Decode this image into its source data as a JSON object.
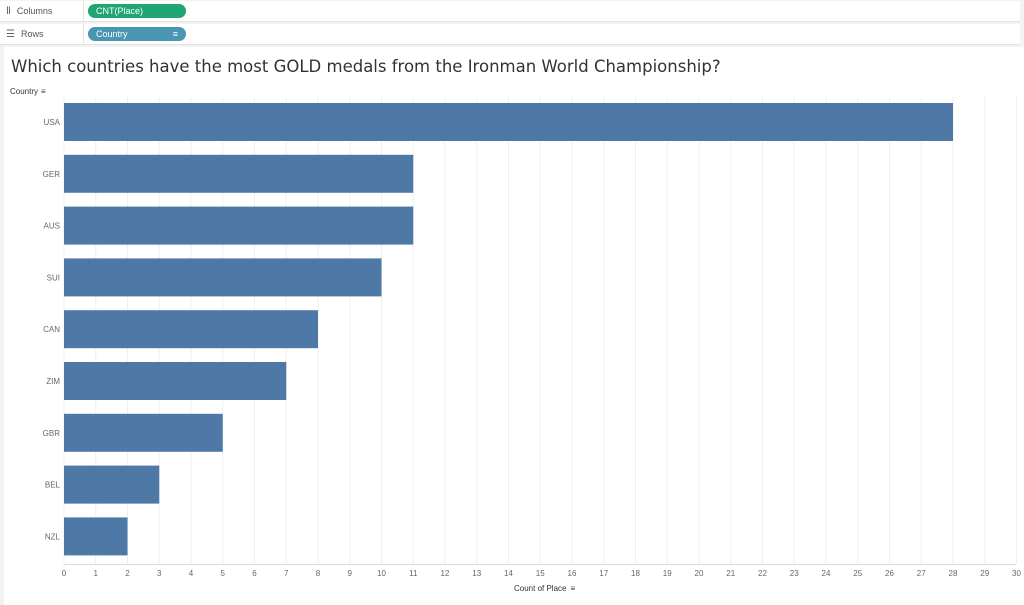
{
  "shelves": {
    "columns": {
      "label": "Columns",
      "pill": "CNT(Place)"
    },
    "rows": {
      "label": "Rows",
      "pill": "Country"
    }
  },
  "colors": {
    "bar": "#4e79a7",
    "columns_pill": "#1fa672",
    "rows_pill": "#4996b2"
  },
  "chart_data": {
    "type": "bar",
    "orientation": "horizontal",
    "title": "Which countries have the most GOLD medals from the Ironman World Championship?",
    "ylabel": "Country",
    "xlabel": "Count of Place",
    "categories": [
      "USA",
      "GER",
      "AUS",
      "SUI",
      "CAN",
      "ZIM",
      "GBR",
      "BEL",
      "NZL"
    ],
    "values": [
      28,
      11,
      11,
      10,
      8,
      7,
      5,
      3,
      2
    ],
    "xlim": [
      0,
      30
    ],
    "x_ticks": [
      0,
      1,
      2,
      3,
      4,
      5,
      6,
      7,
      8,
      9,
      10,
      11,
      12,
      13,
      14,
      15,
      16,
      17,
      18,
      19,
      20,
      21,
      22,
      23,
      24,
      25,
      26,
      27,
      28,
      29,
      30
    ],
    "grid": "vertical",
    "legend": "none"
  }
}
